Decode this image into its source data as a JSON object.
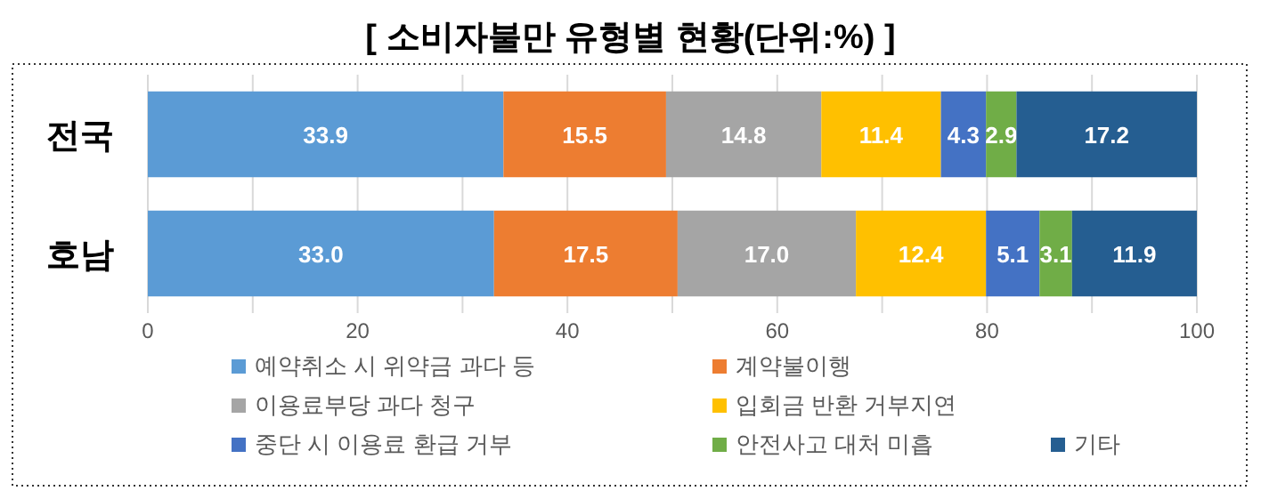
{
  "chart_data": {
    "type": "bar",
    "orientation": "horizontal",
    "stacked": true,
    "title": "[ 소비자불만 유형별 현황(단위:%) ]",
    "categories": [
      "전국",
      "호남"
    ],
    "series": [
      {
        "name": "예약취소 시 위약금 과다 등",
        "color": "#5b9bd5",
        "values": [
          33.9,
          33.0
        ],
        "value_labels": [
          "33.9",
          "33.0"
        ]
      },
      {
        "name": "계약불이행",
        "color": "#ed7d31",
        "values": [
          15.5,
          17.5
        ]
      },
      {
        "name": "이용료부당 과다 청구",
        "color": "#a5a5a5",
        "values": [
          14.8,
          17.0
        ],
        "value_labels": [
          "14.8",
          "17.0"
        ]
      },
      {
        "name": "입회금 반환 거부지연",
        "color": "#ffc000",
        "values": [
          11.4,
          12.4
        ]
      },
      {
        "name": "중단 시 이용료 환급 거부",
        "color": "#4472c4",
        "values": [
          4.3,
          5.1
        ]
      },
      {
        "name": "안전사고 대처 미흡",
        "color": "#70ad47",
        "values": [
          2.9,
          3.1
        ]
      },
      {
        "name": "기타",
        "color": "#255e91",
        "values": [
          17.2,
          11.9
        ]
      }
    ],
    "xlim": [
      0,
      100
    ],
    "xticks": [
      0,
      {
        "value": 10,
        "label": null
      },
      20,
      {
        "value": 30,
        "label": null
      },
      40,
      {
        "value": 50,
        "label": null
      },
      60,
      {
        "value": 70,
        "label": null
      },
      80,
      {
        "value": 90,
        "label": null
      },
      100
    ],
    "grid": "x",
    "legend": "bottom",
    "data_labels": true
  }
}
